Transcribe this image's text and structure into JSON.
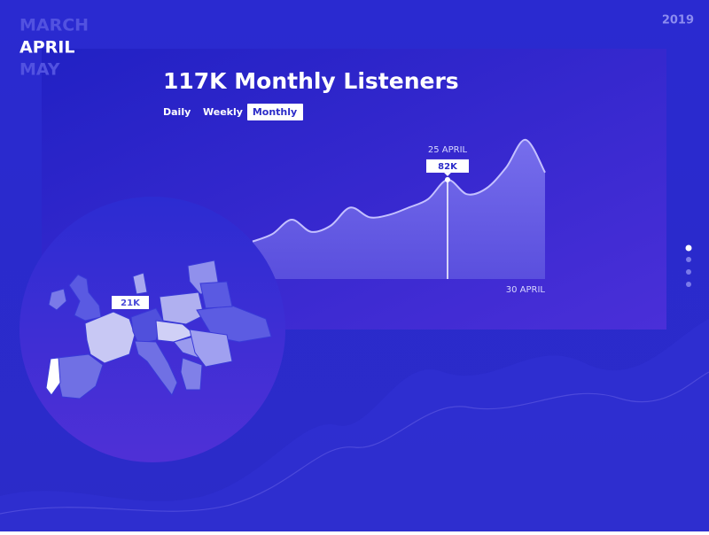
{
  "header": {
    "months": [
      "MARCH",
      "APRIL",
      "MAY"
    ],
    "year": "2019"
  },
  "title": "117K Monthly Listeners",
  "tabs": [
    "Daily",
    "Weekly",
    "Monthly"
  ],
  "chart_data": {
    "type": "area",
    "categories": [
      null,
      null,
      null,
      null,
      null,
      null,
      null,
      null,
      null,
      null,
      "25 APRIL",
      null,
      null,
      null,
      null,
      "30 APRIL"
    ],
    "values": [
      31,
      37,
      49,
      39,
      44,
      59,
      51,
      53,
      59,
      66,
      82,
      70,
      75,
      92,
      115,
      88
    ],
    "value_labels": [
      null,
      null,
      null,
      null,
      null,
      null,
      null,
      null,
      null,
      null,
      "82K",
      null,
      null,
      null,
      null,
      null
    ],
    "ylim": [
      0,
      120
    ],
    "color": "#6b62e6"
  },
  "map": {
    "label": "21K"
  }
}
